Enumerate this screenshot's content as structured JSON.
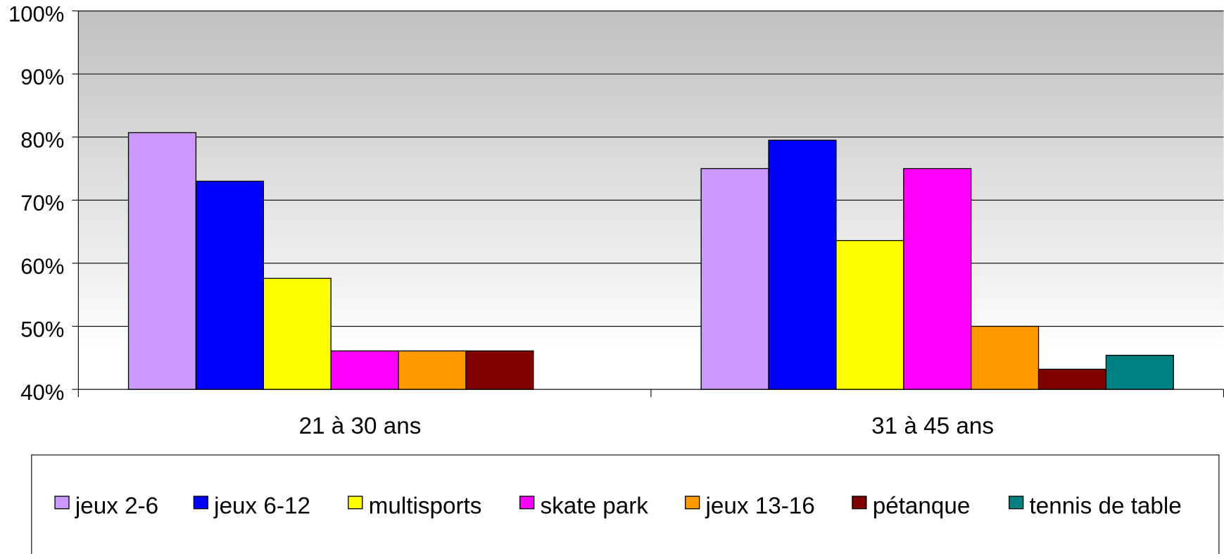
{
  "chart_data": {
    "type": "bar",
    "categories": [
      "21 à 30 ans",
      "31 à 45 ans"
    ],
    "series": [
      {
        "name": "jeux 2-6",
        "color": "#cc99ff",
        "values": [
          80.7,
          75
        ]
      },
      {
        "name": "jeux 6-12",
        "color": "#0000ff",
        "values": [
          73,
          79.5
        ]
      },
      {
        "name": "multisports",
        "color": "#ffff00",
        "values": [
          57.6,
          63.6
        ]
      },
      {
        "name": "skate park",
        "color": "#ff00ff",
        "values": [
          46.1,
          75
        ]
      },
      {
        "name": "jeux 13-16",
        "color": "#ff9900",
        "values": [
          46.1,
          50
        ]
      },
      {
        "name": "pétanque",
        "color": "#800000",
        "values": [
          46.1,
          43.2
        ]
      },
      {
        "name": "tennis de table",
        "color": "#008080",
        "values": [
          null,
          45.4
        ]
      }
    ],
    "ylim": [
      40,
      100
    ],
    "yticks": [
      {
        "value": 40,
        "label": "40%"
      },
      {
        "value": 50,
        "label": "50%"
      },
      {
        "value": 60,
        "label": "60%"
      },
      {
        "value": 70,
        "label": "70%"
      },
      {
        "value": 80,
        "label": "80%"
      },
      {
        "value": 90,
        "label": "90%"
      },
      {
        "value": 100,
        "label": "100%"
      }
    ],
    "grid": true,
    "legend": "bottom"
  }
}
